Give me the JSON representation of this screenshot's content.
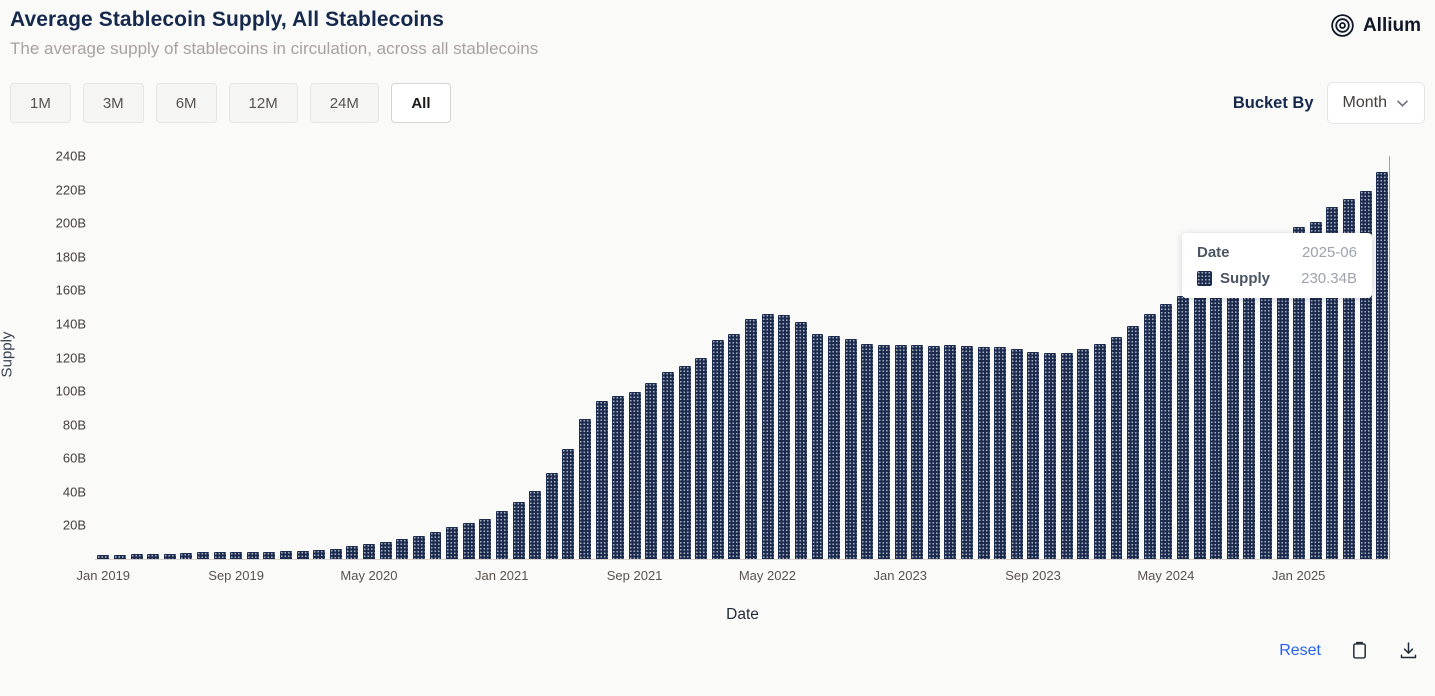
{
  "header": {
    "title": "Average Stablecoin Supply, All Stablecoins",
    "subtitle": "The average supply of stablecoins in circulation, across all stablecoins",
    "brand": "Allium"
  },
  "toolbar": {
    "ranges": [
      "1M",
      "3M",
      "6M",
      "12M",
      "24M",
      "All"
    ],
    "active_range": "All",
    "bucket_by_label": "Bucket By",
    "bucket_value": "Month"
  },
  "chart_data": {
    "type": "bar",
    "title": "Average Stablecoin Supply, All Stablecoins",
    "xlabel": "Date",
    "ylabel": "Supply",
    "ylim": [
      0,
      240
    ],
    "yticks": [
      20,
      40,
      60,
      80,
      100,
      120,
      140,
      160,
      180,
      200,
      220,
      240
    ],
    "ytick_suffix": "B",
    "unit": "B",
    "grid": false,
    "x": [
      "2019-01",
      "2019-02",
      "2019-03",
      "2019-04",
      "2019-05",
      "2019-06",
      "2019-07",
      "2019-08",
      "2019-09",
      "2019-10",
      "2019-11",
      "2019-12",
      "2020-01",
      "2020-02",
      "2020-03",
      "2020-04",
      "2020-05",
      "2020-06",
      "2020-07",
      "2020-08",
      "2020-09",
      "2020-10",
      "2020-11",
      "2020-12",
      "2021-01",
      "2021-02",
      "2021-03",
      "2021-04",
      "2021-05",
      "2021-06",
      "2021-07",
      "2021-08",
      "2021-09",
      "2021-10",
      "2021-11",
      "2021-12",
      "2022-01",
      "2022-02",
      "2022-03",
      "2022-04",
      "2022-05",
      "2022-06",
      "2022-07",
      "2022-08",
      "2022-09",
      "2022-10",
      "2022-11",
      "2022-12",
      "2023-01",
      "2023-02",
      "2023-03",
      "2023-04",
      "2023-05",
      "2023-06",
      "2023-07",
      "2023-08",
      "2023-09",
      "2023-10",
      "2023-11",
      "2023-12",
      "2024-01",
      "2024-02",
      "2024-03",
      "2024-04",
      "2024-05",
      "2024-06",
      "2024-07",
      "2024-08",
      "2024-09",
      "2024-10",
      "2024-11",
      "2024-12",
      "2025-01",
      "2025-02",
      "2025-03",
      "2025-04",
      "2025-05",
      "2025-06"
    ],
    "values": [
      2.5,
      2.6,
      2.7,
      2.9,
      3.2,
      3.6,
      3.9,
      4.0,
      4.1,
      4.2,
      4.3,
      4.5,
      4.8,
      5.3,
      6.2,
      7.5,
      9.0,
      10.4,
      11.8,
      13.8,
      16.2,
      18.8,
      21.3,
      23.8,
      28.6,
      34.2,
      40.6,
      51.2,
      65.3,
      83.1,
      94.2,
      96.8,
      99.4,
      104.6,
      111.2,
      114.8,
      119.9,
      130.4,
      134.2,
      143.1,
      145.9,
      145.4,
      141.2,
      134.0,
      133.1,
      130.9,
      128.2,
      127.6,
      127.2,
      127.6,
      126.8,
      127.3,
      127.0,
      126.5,
      126.1,
      124.8,
      123.2,
      122.4,
      122.6,
      124.9,
      127.8,
      132.5,
      138.9,
      146.2,
      151.8,
      156.4,
      158.9,
      159.6,
      162.3,
      168.7,
      178.2,
      190.1,
      197.6,
      200.9,
      209.8,
      214.6,
      219.2,
      230.34
    ],
    "xticks": [
      {
        "index": 0,
        "label": "Jan 2019"
      },
      {
        "index": 8,
        "label": "Sep 2019"
      },
      {
        "index": 16,
        "label": "May 2020"
      },
      {
        "index": 24,
        "label": "Jan 2021"
      },
      {
        "index": 32,
        "label": "Sep 2021"
      },
      {
        "index": 40,
        "label": "May 2022"
      },
      {
        "index": 48,
        "label": "Jan 2023"
      },
      {
        "index": 56,
        "label": "Sep 2023"
      },
      {
        "index": 64,
        "label": "May 2024"
      },
      {
        "index": 72,
        "label": "Jan 2025"
      }
    ],
    "highlighted_point": {
      "x": "2025-06",
      "value": 230.34
    }
  },
  "tooltip": {
    "date_label": "Date",
    "date_value": "2025-06",
    "supply_label": "Supply",
    "supply_value": "230.34B"
  },
  "footer": {
    "reset_label": "Reset"
  },
  "colors": {
    "bar": "#1b2b4f",
    "title": "#16294d",
    "subtitle": "#a8a29e",
    "link": "#2563eb"
  }
}
